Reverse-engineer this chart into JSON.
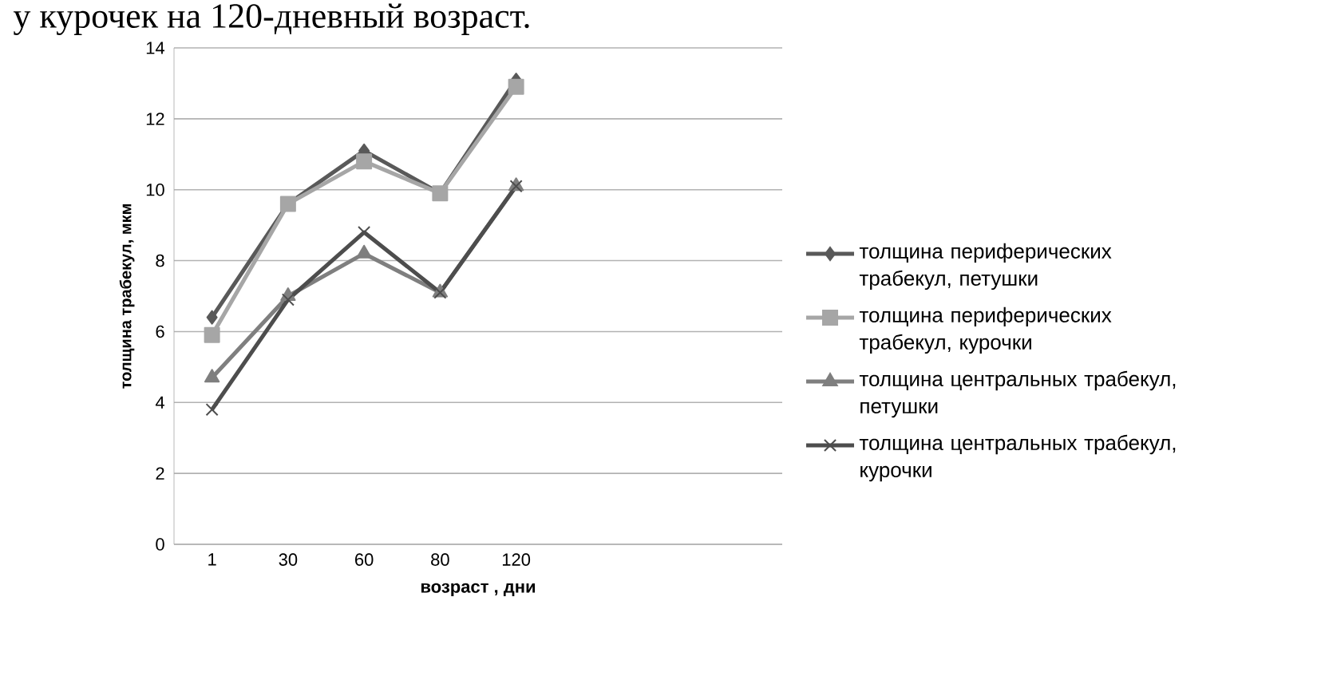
{
  "chart_data": {
    "type": "line",
    "annotations": [
      "у курочек на 120-дневный возраст."
    ],
    "xlabel": "возраст , дни",
    "ylabel": "толщина трабекул, мкм",
    "categories": [
      "1",
      "30",
      "60",
      "80",
      "120",
      null,
      null,
      null
    ],
    "ylim": [
      0,
      14
    ],
    "yticks": [
      0,
      2,
      4,
      6,
      8,
      10,
      12,
      14
    ],
    "grid": "y",
    "legend": "right",
    "series": [
      {
        "name": "толщина периферических трабекул, петушки",
        "color": "#595959",
        "marker": "diamond",
        "values": [
          6.4,
          9.6,
          11.1,
          9.9,
          13.1,
          null,
          null,
          null
        ]
      },
      {
        "name": "толщина периферических трабекул, курочки",
        "color": "#a6a6a6",
        "marker": "square",
        "values": [
          5.9,
          9.6,
          10.8,
          9.9,
          12.9,
          null,
          null,
          null
        ]
      },
      {
        "name": "толщина центральных трабекул, петушки",
        "color": "#7f7f7f",
        "marker": "triangle",
        "values": [
          4.7,
          7.0,
          8.2,
          7.1,
          10.1,
          null,
          null,
          null
        ]
      },
      {
        "name": "толщина центральных трабекул, курочки",
        "color": "#4d4d4d",
        "marker": "cross",
        "values": [
          3.8,
          6.9,
          8.8,
          7.1,
          10.1,
          null,
          null,
          null
        ]
      }
    ]
  }
}
